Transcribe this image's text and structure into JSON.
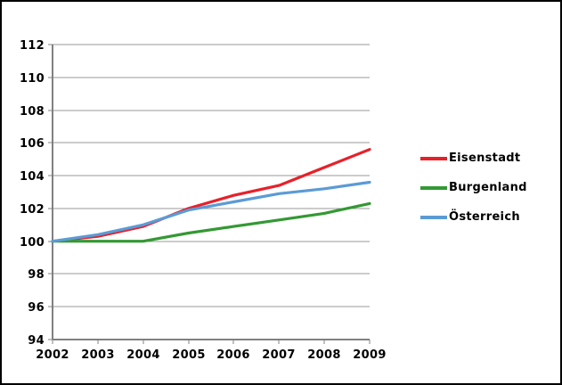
{
  "window": {
    "background": "#ffffff",
    "border_color": "#000000"
  },
  "chart_data": {
    "type": "line",
    "title": "",
    "xlabel": "",
    "ylabel": "",
    "x": [
      2002,
      2003,
      2004,
      2005,
      2006,
      2007,
      2008,
      2009
    ],
    "series": [
      {
        "name": "Eisenstadt",
        "color": "#e8202a",
        "values": [
          100.0,
          100.3,
          100.9,
          102.0,
          102.8,
          103.4,
          104.5,
          105.6
        ]
      },
      {
        "name": "Burgenland",
        "color": "#339933",
        "values": [
          100.0,
          100.0,
          100.0,
          100.5,
          100.9,
          101.3,
          101.7,
          102.3
        ]
      },
      {
        "name": "Österreich",
        "color": "#5b9bd5",
        "values": [
          100.0,
          100.4,
          101.0,
          101.9,
          102.4,
          102.9,
          103.2,
          103.6
        ]
      }
    ],
    "ylim": [
      94,
      112
    ],
    "ytick_step": 2,
    "grid": "horizontal",
    "legend_position": "right",
    "grid_color": "#999999",
    "axis_color": "#808080",
    "text_color": "#000000"
  }
}
